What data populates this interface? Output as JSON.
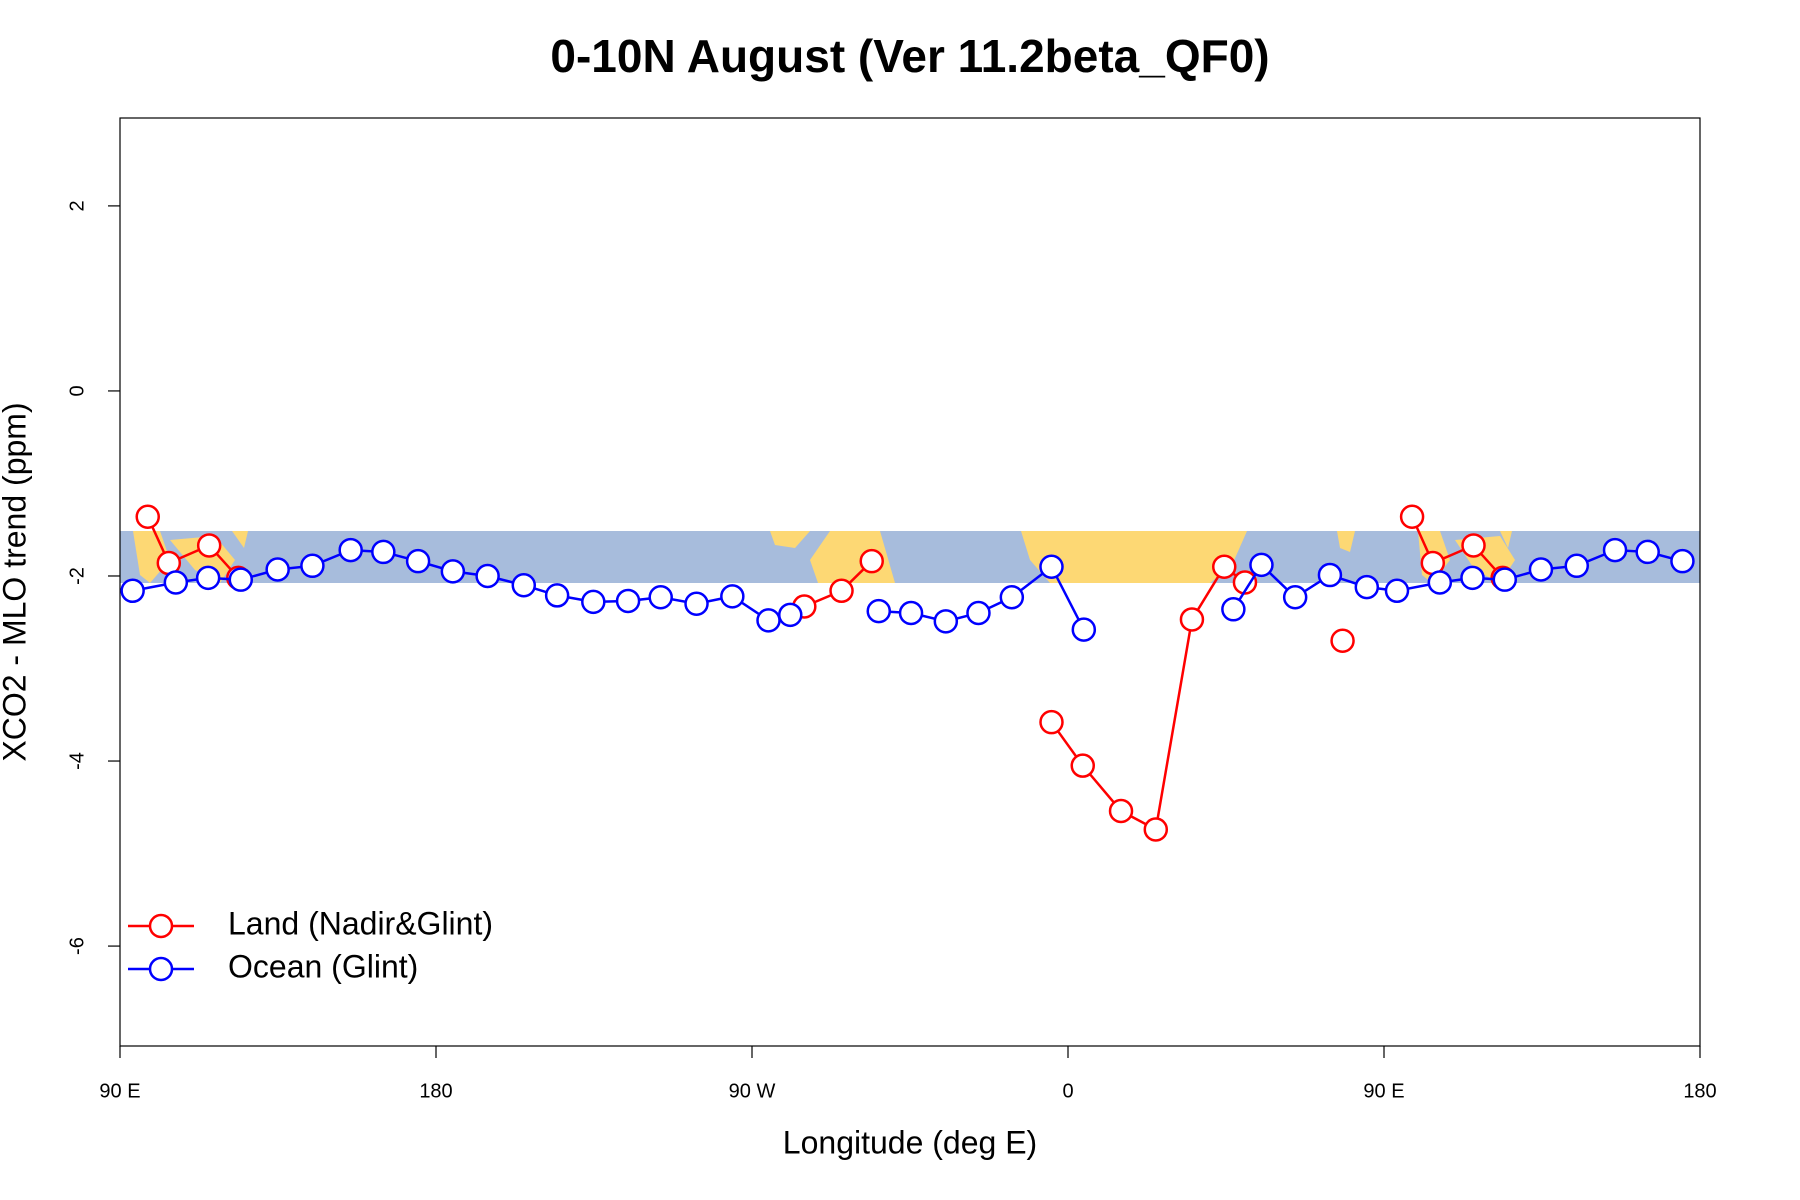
{
  "chart_data": {
    "type": "line",
    "title": "0-10N August (Ver 11.2beta_QF0)",
    "x_label": "Longitude (deg E)",
    "y_label": "XCO2 - MLO trend (ppm)",
    "xlim": [
      90,
      540
    ],
    "ylim": [
      -7.08,
      2.95
    ],
    "xticks": [
      {
        "value": 90,
        "label": "90 E"
      },
      180,
      {
        "value": 270,
        "label": "90 W"
      },
      {
        "value": 360,
        "label": "0"
      },
      {
        "value": 450,
        "label": "90 E"
      },
      {
        "value": 540,
        "label": "180"
      }
    ],
    "yticks": [
      -6,
      -4,
      -2,
      0,
      2
    ],
    "legend": "bottomleft",
    "series": [
      {
        "name": "Land (Nadir&Glint)",
        "color": "#ff0000",
        "x": [
          97.9,
          103.9,
          115.4,
          123.7,
          null,
          284.9,
          295.5,
          304.1,
          null,
          355.3,
          364.2,
          375.1,
          385.0,
          395.3,
          404.5,
          410.4,
          null,
          438.2,
          null,
          458.0,
          463.9,
          475.5,
          483.8
        ],
        "values": [
          -1.36,
          -1.86,
          -1.67,
          -2.02,
          null,
          -2.33,
          -2.16,
          -1.84,
          null,
          -3.58,
          -4.05,
          -4.54,
          -4.74,
          -2.47,
          -1.9,
          -2.07,
          null,
          -2.7,
          null,
          -1.36,
          -1.86,
          -1.67,
          -2.02
        ]
      },
      {
        "name": "Ocean (Glint)",
        "color": "#0000ff",
        "x": [
          93.6,
          105.9,
          115.1,
          124.4,
          134.9,
          144.8,
          155.7,
          165.0,
          174.9,
          184.8,
          194.7,
          205.0,
          214.5,
          224.8,
          234.7,
          244.0,
          254.2,
          264.4,
          274.7,
          280.9,
          null,
          306.1,
          315.3,
          325.2,
          334.5,
          344.0,
          355.3,
          364.5,
          null,
          407.1,
          415.1,
          424.7,
          434.6,
          445.1,
          453.7,
          465.9,
          475.2,
          484.4,
          494.7,
          504.9,
          515.8,
          525.1,
          535.0
        ],
        "values": [
          -2.16,
          -2.07,
          -2.02,
          -2.04,
          -1.93,
          -1.89,
          -1.72,
          -1.74,
          -1.84,
          -1.95,
          -2.0,
          -2.1,
          -2.21,
          -2.28,
          -2.27,
          -2.23,
          -2.3,
          -2.22,
          -2.48,
          -2.42,
          null,
          -2.38,
          -2.4,
          -2.49,
          -2.4,
          -2.23,
          -1.9,
          -2.58,
          null,
          -2.36,
          -1.88,
          -2.23,
          -1.99,
          -2.12,
          -2.16,
          -2.07,
          -2.02,
          -2.04,
          -1.93,
          -1.89,
          -1.72,
          -1.74,
          -1.84
        ]
      }
    ]
  }
}
